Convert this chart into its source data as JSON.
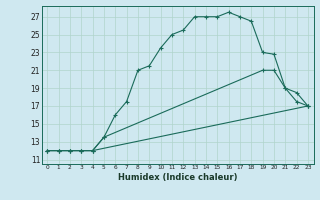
{
  "xlabel": "Humidex (Indice chaleur)",
  "bg_color": "#cfe8f0",
  "grid_color": "#b0d4cc",
  "line_color": "#1a6b5a",
  "xlim": [
    -0.5,
    23.5
  ],
  "ylim": [
    10.5,
    28.2
  ],
  "xticks": [
    0,
    1,
    2,
    3,
    4,
    5,
    6,
    7,
    8,
    9,
    10,
    11,
    12,
    13,
    14,
    15,
    16,
    17,
    18,
    19,
    20,
    21,
    22,
    23
  ],
  "yticks": [
    11,
    13,
    15,
    17,
    19,
    21,
    23,
    25,
    27
  ],
  "line1_x": [
    0,
    1,
    2,
    3,
    4,
    5,
    6,
    7,
    8,
    9,
    10,
    11,
    12,
    13,
    14,
    15,
    16,
    17,
    18,
    19,
    20,
    21,
    22,
    23
  ],
  "line1_y": [
    12,
    12,
    12,
    12,
    12,
    13.5,
    16,
    17.5,
    21,
    21.5,
    23.5,
    25,
    25.5,
    27,
    27,
    27,
    27.5,
    27,
    26.5,
    23,
    22.8,
    19,
    17.5,
    17
  ],
  "line2_x": [
    0,
    1,
    2,
    3,
    4,
    23
  ],
  "line2_y": [
    12,
    12,
    12,
    12,
    12,
    17
  ],
  "line3_x": [
    0,
    1,
    2,
    3,
    4,
    5,
    19,
    20,
    21,
    22,
    23
  ],
  "line3_y": [
    12,
    12,
    12,
    12,
    12,
    13.5,
    21,
    21,
    19,
    18.5,
    17
  ]
}
